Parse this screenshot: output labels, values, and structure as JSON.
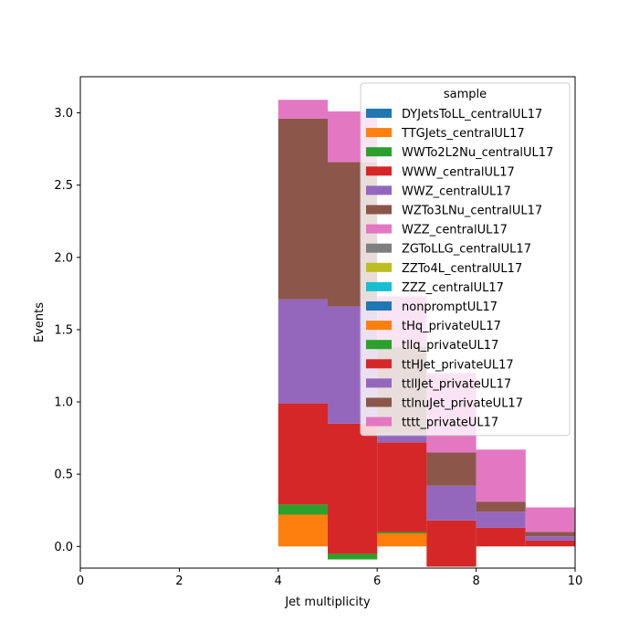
{
  "chart_data": {
    "type": "bar",
    "stacked": true,
    "title": "",
    "xlabel": "Jet multiplicity",
    "ylabel": "Events",
    "xlim": [
      0,
      10
    ],
    "ylim": [
      -0.15,
      3.25
    ],
    "x_ticks": [
      0,
      2,
      4,
      6,
      8,
      10
    ],
    "y_ticks": [
      0.0,
      0.5,
      1.0,
      1.5,
      2.0,
      2.5,
      3.0
    ],
    "x_tick_labels": [
      "0",
      "2",
      "4",
      "6",
      "8",
      "10"
    ],
    "y_tick_labels": [
      "0.0",
      "0.5",
      "1.0",
      "1.5",
      "2.0",
      "2.5",
      "3.0"
    ],
    "grid": false,
    "legend_title": "sample",
    "legend_position": "top-right",
    "bin_edges": [
      4,
      5,
      6,
      7,
      8,
      9,
      10
    ],
    "series": [
      {
        "name": "DYJetsToLL_centralUL17",
        "color": "#1f77b4",
        "values": [
          0,
          0,
          0,
          0,
          0,
          0
        ]
      },
      {
        "name": "TTGJets_centralUL17",
        "color": "#ff7f0e",
        "values": [
          0.22,
          -0.09,
          0.09,
          0,
          0,
          0
        ]
      },
      {
        "name": "WWTo2L2Nu_centralUL17",
        "color": "#2ca02c",
        "values": [
          0.07,
          0.04,
          0.01,
          -0.14,
          0,
          0
        ]
      },
      {
        "name": "WWW_centralUL17",
        "color": "#d62728",
        "values": [
          0.7,
          0.9,
          0.62,
          0.32,
          0.13,
          0.04
        ]
      },
      {
        "name": "WWZ_centralUL17",
        "color": "#9467bd",
        "values": [
          0.72,
          0.81,
          0.06,
          0.24,
          0.11,
          0.03
        ]
      },
      {
        "name": "WZTo3LNu_centralUL17",
        "color": "#8c564b",
        "values": [
          1.25,
          1.0,
          0.6,
          0.23,
          0.07,
          0.03
        ]
      },
      {
        "name": "WZZ_centralUL17",
        "color": "#e377c2",
        "values": [
          0.13,
          0.35,
          0.35,
          0.55,
          0.36,
          0.17
        ]
      },
      {
        "name": "ZGToLLG_centralUL17",
        "color": "#7f7f7f",
        "values": [
          0,
          0,
          0,
          0,
          0,
          0
        ]
      },
      {
        "name": "ZZTo4L_centralUL17",
        "color": "#bcbd22",
        "values": [
          0,
          0,
          0,
          0,
          0,
          0
        ]
      },
      {
        "name": "ZZZ_centralUL17",
        "color": "#17becf",
        "values": [
          0,
          0,
          0,
          0,
          0,
          0
        ]
      },
      {
        "name": "nonpromptUL17",
        "color": "#1f77b4",
        "values": [
          0,
          0,
          0,
          0,
          0,
          0
        ]
      },
      {
        "name": "tHq_privateUL17",
        "color": "#ff7f0e",
        "values": [
          0,
          0,
          0,
          0,
          0,
          0
        ]
      },
      {
        "name": "tllq_privateUL17",
        "color": "#2ca02c",
        "values": [
          0,
          0,
          0,
          0,
          0,
          0
        ]
      },
      {
        "name": "ttHJet_privateUL17",
        "color": "#d62728",
        "values": [
          0,
          0,
          0,
          0,
          0,
          0
        ]
      },
      {
        "name": "ttllJet_privateUL17",
        "color": "#9467bd",
        "values": [
          0,
          0,
          0,
          0,
          0,
          0
        ]
      },
      {
        "name": "ttlnuJet_privateUL17",
        "color": "#8c564b",
        "values": [
          0,
          0,
          0,
          0,
          0,
          0
        ]
      },
      {
        "name": "tttt_privateUL17",
        "color": "#e377c2",
        "values": [
          0,
          0,
          0,
          0,
          0,
          0
        ]
      }
    ]
  }
}
